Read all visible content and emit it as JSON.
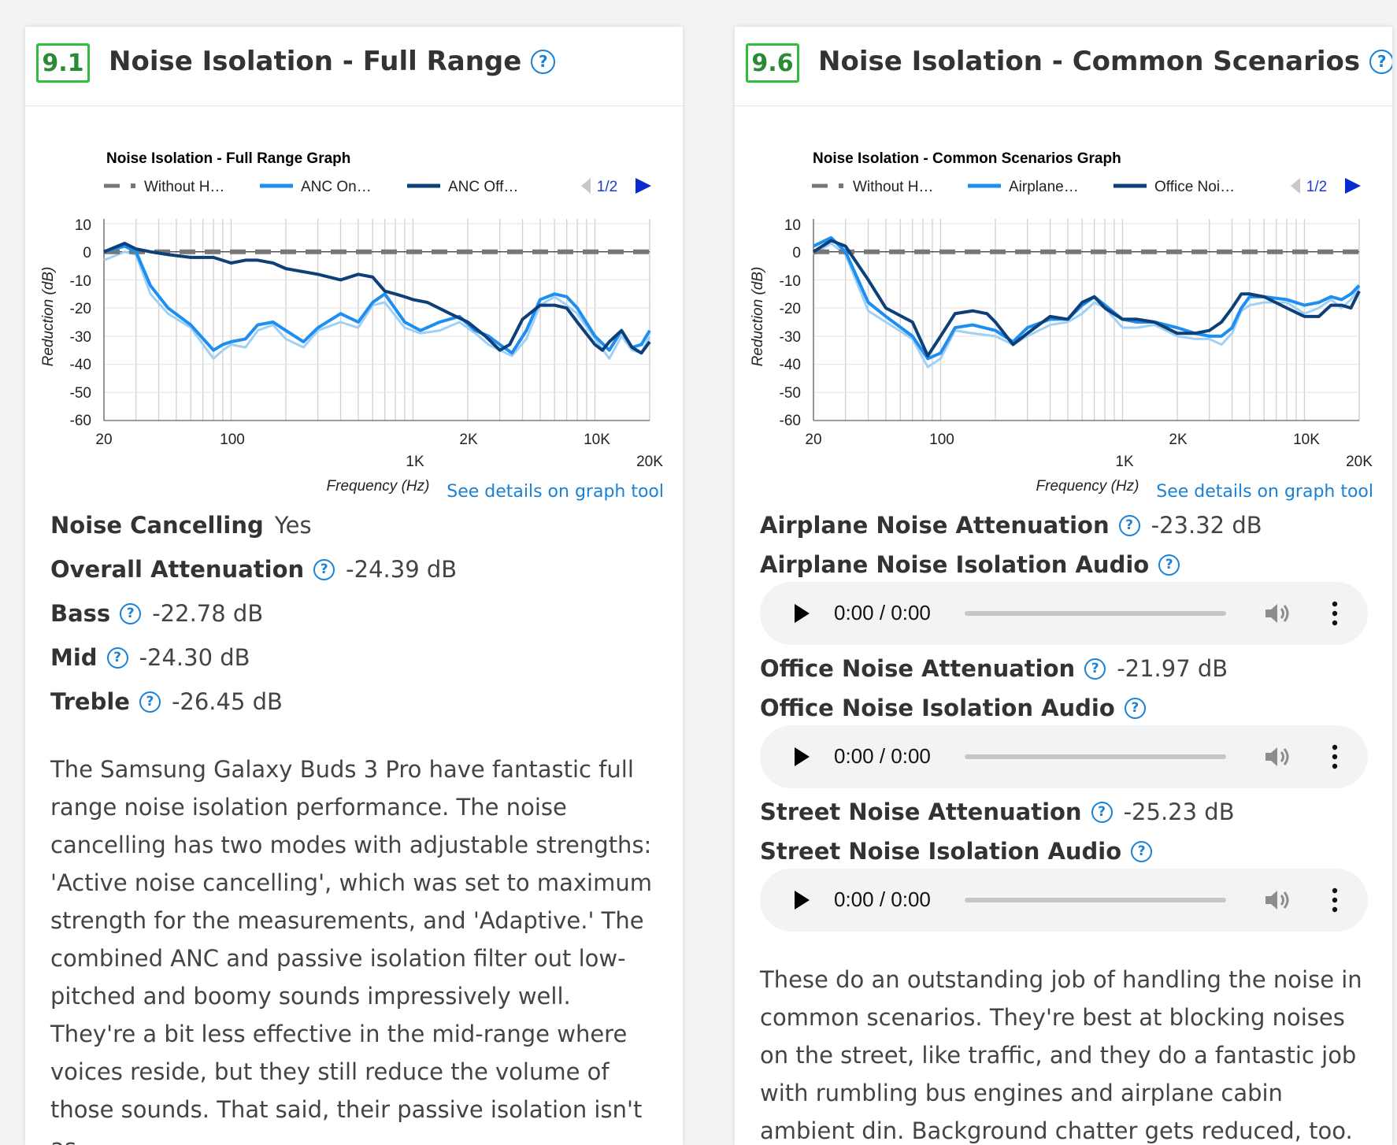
{
  "left": {
    "score": "9.1",
    "title": "Noise Isolation - Full Range",
    "graph": {
      "title": "Noise Isolation - Full Range Graph",
      "legend": [
        "Without H…",
        "ANC On…",
        "ANC Off…"
      ],
      "page": "1/2",
      "ylabel": "Reduction (dB)",
      "xlabel": "Frequency (Hz)",
      "yticks": [
        "10",
        "0",
        "-10",
        "-20",
        "-30",
        "-40",
        "-50",
        "-60"
      ],
      "xticks_upper": [
        "20",
        "100",
        "2K",
        "10K"
      ],
      "xticks_lower": [
        "1K",
        "20K"
      ]
    },
    "tool_link": "See details on graph tool",
    "stats": {
      "noise_cancelling": {
        "label": "Noise Cancelling",
        "value": "Yes"
      },
      "overall": {
        "label": "Overall Attenuation",
        "value": "-24.39 dB"
      },
      "bass": {
        "label": "Bass",
        "value": "-22.78 dB"
      },
      "mid": {
        "label": "Mid",
        "value": "-24.30 dB"
      },
      "treble": {
        "label": "Treble",
        "value": "-26.45 dB"
      }
    },
    "body": "The Samsung Galaxy Buds 3 Pro have fantastic full range noise isolation performance. The noise cancelling has two modes with adjustable strengths: 'Active noise cancelling', which was set to maximum strength for the measurements, and 'Adaptive.' The combined ANC and passive isolation filter out low-pitched and boomy sounds impressively well. They're a bit less effective in the mid-range where voices reside, but they still reduce the volume of those sounds. That said, their passive isolation isn't as"
  },
  "right": {
    "score": "9.6",
    "title": "Noise Isolation - Common Scenarios",
    "graph": {
      "title": "Noise Isolation - Common Scenarios Graph",
      "legend": [
        "Without H…",
        "Airplane…",
        "Office Noi…"
      ],
      "page": "1/2",
      "ylabel": "Reduction (dB)",
      "xlabel": "Frequency (Hz)",
      "yticks": [
        "10",
        "0",
        "-10",
        "-20",
        "-30",
        "-40",
        "-50",
        "-60"
      ],
      "xticks_upper": [
        "20",
        "100",
        "2K",
        "10K"
      ],
      "xticks_lower": [
        "1K",
        "20K"
      ]
    },
    "tool_link": "See details on graph tool",
    "airplane": {
      "label": "Airplane Noise Attenuation",
      "value": "-23.32 dB",
      "audio_label": "Airplane Noise Isolation Audio"
    },
    "office": {
      "label": "Office Noise Attenuation",
      "value": "-21.97 dB",
      "audio_label": "Office Noise Isolation Audio"
    },
    "street": {
      "label": "Street Noise Attenuation",
      "value": "-25.23 dB",
      "audio_label": "Street Noise Isolation Audio"
    },
    "audio_time": "0:00 / 0:00",
    "body": "These do an outstanding job of handling the noise in common scenarios. They're best at blocking noises on the street, like traffic, and they do a fantastic job with rumbling bus engines and airplane cabin ambient din. Background chatter gets reduced, too. Trebly sounds"
  },
  "colors": {
    "score_border": "#2ebd3c",
    "accent": "#1a82d6",
    "series_without": "#777777",
    "series_light": "#9fd1f7",
    "series_mid": "#1e8ef0",
    "series_dark": "#0d3f78"
  },
  "chart_data": [
    {
      "type": "line",
      "title": "Noise Isolation - Full Range Graph",
      "xlabel": "Frequency (Hz)",
      "ylabel": "Reduction (dB)",
      "xscale": "log",
      "xlim": [
        20,
        20000
      ],
      "ylim": [
        -60,
        10
      ],
      "grid": true,
      "legend": "top",
      "series": [
        {
          "name": "Without H…",
          "style": "dashed",
          "x": [
            20,
            20000
          ],
          "y": [
            0,
            0
          ]
        },
        {
          "name": "ANC On…",
          "x": [
            20,
            26,
            30,
            36,
            45,
            60,
            80,
            90,
            100,
            120,
            140,
            170,
            200,
            250,
            300,
            400,
            500,
            600,
            700,
            900,
            1100,
            1400,
            1800,
            2200,
            2600,
            3000,
            3500,
            4200,
            5000,
            6000,
            7000,
            8000,
            10000,
            12000,
            14000,
            16000,
            18000,
            20000
          ],
          "y": [
            0,
            2,
            0,
            -12,
            -20,
            -26,
            -35,
            -33,
            -32,
            -31,
            -26,
            -25,
            -28,
            -32,
            -27,
            -22,
            -25,
            -18,
            -15,
            -25,
            -28,
            -25,
            -23,
            -28,
            -30,
            -33,
            -36,
            -28,
            -17,
            -15,
            -16,
            -20,
            -30,
            -35,
            -28,
            -34,
            -33,
            -28
          ]
        },
        {
          "name": "ANC Off…",
          "x": [
            20,
            26,
            30,
            36,
            45,
            60,
            80,
            100,
            120,
            140,
            170,
            200,
            300,
            400,
            500,
            600,
            700,
            800,
            900,
            1000,
            1200,
            1600,
            2000,
            2500,
            3000,
            3400,
            4000,
            5000,
            6000,
            7000,
            8000,
            10000,
            11000,
            12000,
            14000,
            16000,
            18000,
            20000
          ],
          "y": [
            0,
            3,
            1,
            0,
            -1,
            -2,
            -2,
            -4,
            -3,
            -3,
            -4,
            -6,
            -8,
            -10,
            -8,
            -9,
            -14,
            -15,
            -16,
            -17,
            -18,
            -22,
            -25,
            -30,
            -35,
            -33,
            -24,
            -19,
            -19,
            -20,
            -25,
            -33,
            -35,
            -32,
            -28,
            -34,
            -36,
            -32
          ]
        }
      ]
    },
    {
      "type": "line",
      "title": "Noise Isolation - Common Scenarios Graph",
      "xlabel": "Frequency (Hz)",
      "ylabel": "Reduction (dB)",
      "xscale": "log",
      "xlim": [
        20,
        20000
      ],
      "ylim": [
        -60,
        10
      ],
      "grid": true,
      "legend": "top",
      "series": [
        {
          "name": "Without H…",
          "style": "dashed",
          "x": [
            20,
            20000
          ],
          "y": [
            0,
            0
          ]
        },
        {
          "name": "Airplane…",
          "x": [
            20,
            25,
            30,
            40,
            50,
            70,
            85,
            100,
            120,
            150,
            200,
            250,
            300,
            400,
            500,
            600,
            700,
            800,
            1000,
            1200,
            1500,
            2000,
            2500,
            3000,
            3500,
            4000,
            4500,
            5000,
            6000,
            8000,
            10000,
            12000,
            14000,
            16000,
            18000,
            20000
          ],
          "y": [
            2,
            5,
            0,
            -18,
            -23,
            -30,
            -38,
            -36,
            -27,
            -26,
            -28,
            -32,
            -27,
            -24,
            -24,
            -19,
            -16,
            -19,
            -24,
            -25,
            -25,
            -27,
            -29,
            -30,
            -30,
            -27,
            -20,
            -16,
            -16,
            -17,
            -19,
            -18,
            -16,
            -17,
            -15,
            -12
          ]
        },
        {
          "name": "Office Noi…",
          "x": [
            20,
            25,
            30,
            40,
            50,
            70,
            85,
            100,
            120,
            150,
            180,
            200,
            250,
            300,
            400,
            500,
            600,
            700,
            800,
            1000,
            1200,
            1500,
            2000,
            2500,
            3000,
            3500,
            4000,
            4500,
            5000,
            6000,
            8000,
            10000,
            12000,
            14000,
            16000,
            18000,
            20000
          ],
          "y": [
            0,
            4,
            2,
            -10,
            -20,
            -25,
            -37,
            -30,
            -22,
            -21,
            -22,
            -25,
            -33,
            -29,
            -23,
            -24,
            -18,
            -16,
            -20,
            -24,
            -24,
            -25,
            -29,
            -29,
            -28,
            -25,
            -20,
            -15,
            -15,
            -16,
            -20,
            -23,
            -23,
            -19,
            -19,
            -20,
            -14
          ]
        }
      ]
    }
  ]
}
